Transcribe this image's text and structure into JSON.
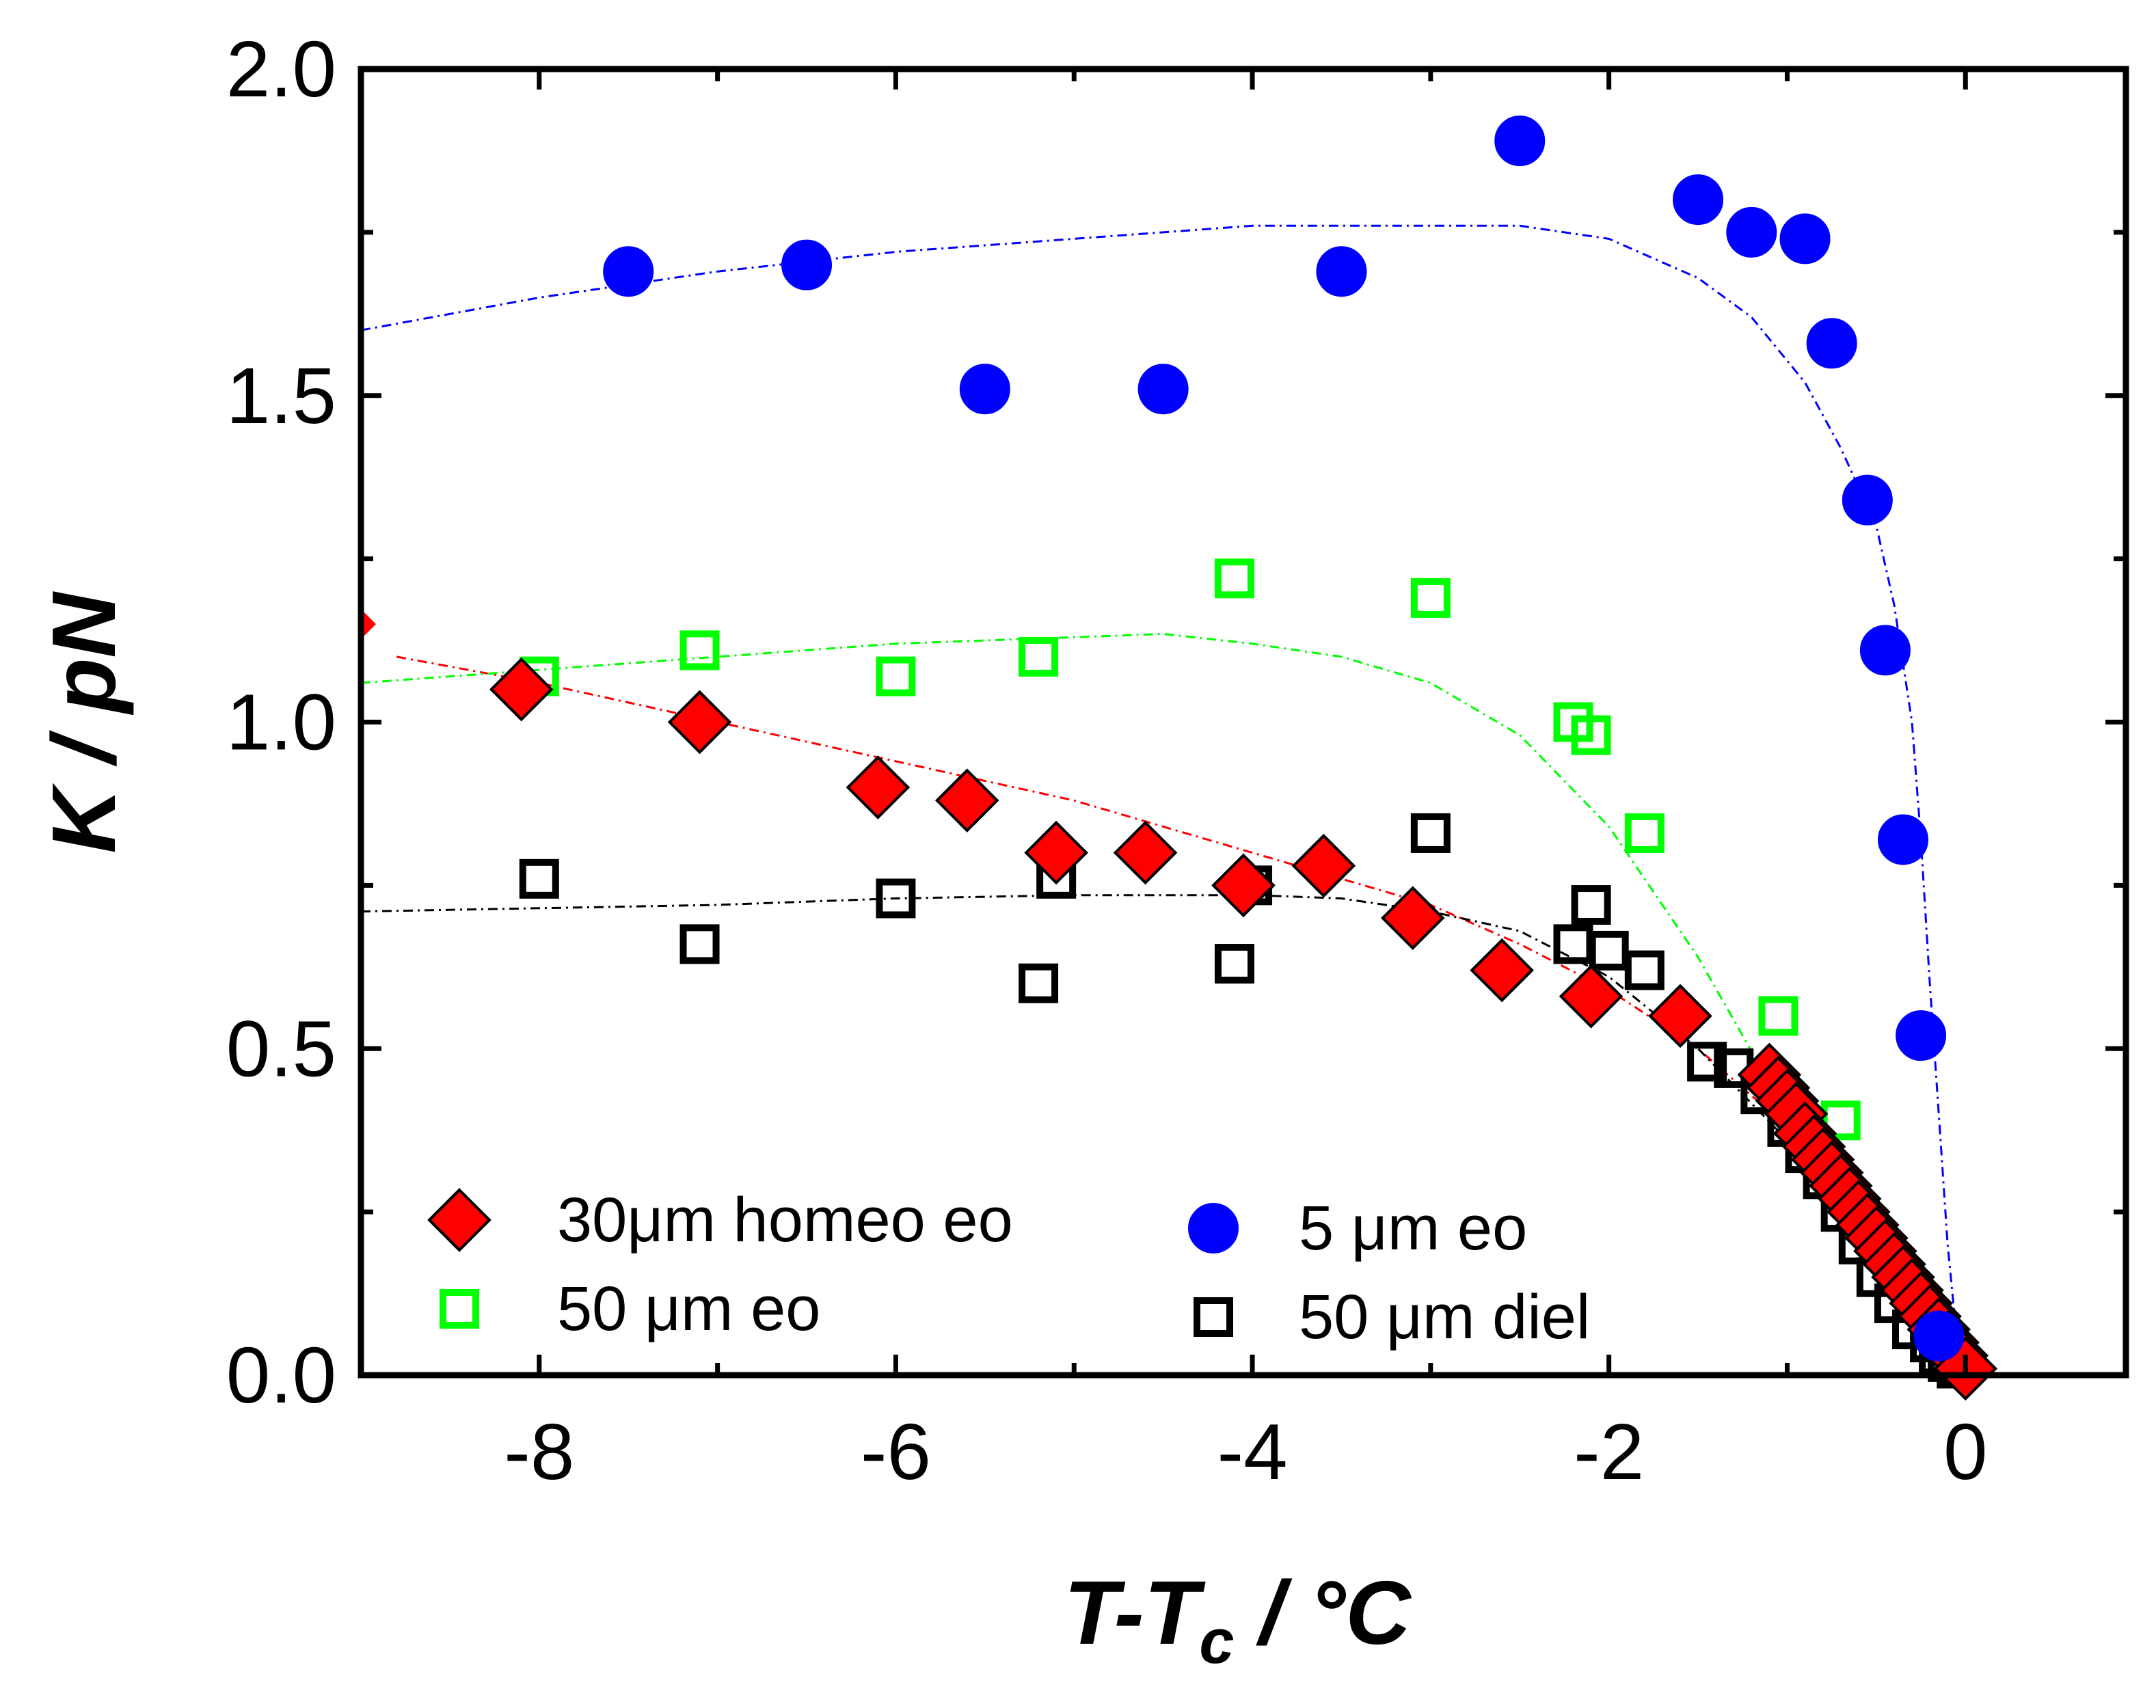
{
  "chart_data": {
    "type": "scatter",
    "title": "",
    "xlabel": {
      "main": "T-T",
      "sub": "c",
      "unit": " / °C"
    },
    "ylabel": {
      "main": "K",
      "unit": " / pN"
    },
    "xlim": [
      -9.0,
      0.9
    ],
    "ylim": [
      0.0,
      2.0
    ],
    "xticks": [
      -8,
      -6,
      -4,
      -2,
      0
    ],
    "xtick_labels": [
      "-8",
      "-6",
      "-4",
      "-2",
      "0"
    ],
    "yticks": [
      0.0,
      0.5,
      1.0,
      1.5,
      2.0
    ],
    "ytick_labels": [
      "0.0",
      "0.5",
      "1.0",
      "1.5",
      "2.0"
    ],
    "minor_xticks": [
      -9,
      -7,
      -5,
      -3,
      -1
    ],
    "minor_yticks": [
      0.25,
      0.75,
      1.25,
      1.75
    ],
    "grid": false,
    "legend_position": "bottom-left",
    "series": [
      {
        "name": "30μm homeo eo",
        "marker": "diamond",
        "color": "#ff0000",
        "edge": "#000000",
        "x": [
          -8.1,
          -7.1,
          -6.1,
          -5.6,
          -5.1,
          -4.6,
          -4.05,
          -3.6,
          -3.1,
          -2.6,
          -2.1,
          -1.6,
          -1.1,
          -1.05,
          -1.0,
          -0.95,
          -0.9,
          -0.85,
          -0.8,
          -0.75,
          -0.7,
          -0.65,
          -0.6,
          -0.55,
          -0.5,
          -0.45,
          -0.4,
          -0.35,
          -0.3,
          -0.25,
          -0.2,
          -0.15,
          -0.1,
          -0.05,
          0.0
        ],
        "y": [
          1.05,
          1.0,
          0.9,
          0.88,
          0.8,
          0.8,
          0.75,
          0.78,
          0.7,
          0.62,
          0.58,
          0.55,
          0.46,
          0.44,
          0.42,
          0.4,
          0.37,
          0.35,
          0.33,
          0.31,
          0.29,
          0.27,
          0.25,
          0.23,
          0.21,
          0.19,
          0.17,
          0.15,
          0.13,
          0.11,
          0.09,
          0.07,
          0.05,
          0.03,
          0.01
        ]
      },
      {
        "name": "5 μm eo",
        "marker": "circle",
        "color": "#0000ff",
        "edge": "#0000ff",
        "x": [
          -7.5,
          -6.5,
          -5.5,
          -4.5,
          -3.5,
          -2.5,
          -1.5,
          -1.2,
          -0.9,
          -0.75,
          -0.55,
          -0.45,
          -0.35,
          -0.25,
          -0.15
        ],
        "y": [
          1.69,
          1.7,
          1.51,
          1.51,
          1.69,
          1.89,
          1.8,
          1.75,
          1.74,
          1.58,
          1.34,
          1.11,
          0.82,
          0.52,
          0.06
        ]
      },
      {
        "name": "50 μm eo",
        "marker": "square-open",
        "color": "#00ff00",
        "edge": "#00ff00",
        "x": [
          -8.0,
          -7.1,
          -6.0,
          -5.2,
          -4.1,
          -3.0,
          -2.2,
          -2.1,
          -1.8,
          -1.05,
          -0.7
        ],
        "y": [
          1.07,
          1.11,
          1.07,
          1.1,
          1.22,
          1.19,
          1.0,
          0.98,
          0.83,
          0.55,
          0.39
        ]
      },
      {
        "name": "50 μm diel",
        "marker": "square-open",
        "color": "#000000",
        "edge": "#000000",
        "x": [
          -8.0,
          -7.1,
          -6.0,
          -5.2,
          -5.1,
          -4.1,
          -4.0,
          -3.0,
          -2.2,
          -2.1,
          -2.0,
          -1.8,
          -1.45,
          -1.3,
          -1.15,
          -1.0,
          -0.9,
          -0.8,
          -0.7,
          -0.6,
          -0.5,
          -0.4,
          -0.3,
          -0.2,
          -0.15,
          -0.1,
          -0.05
        ],
        "y": [
          0.76,
          0.66,
          0.73,
          0.6,
          0.76,
          0.63,
          0.75,
          0.83,
          0.66,
          0.72,
          0.65,
          0.62,
          0.48,
          0.47,
          0.43,
          0.38,
          0.34,
          0.3,
          0.25,
          0.2,
          0.15,
          0.11,
          0.07,
          0.05,
          0.03,
          0.02,
          0.01
        ]
      }
    ],
    "fits": [
      {
        "series": "30μm homeo eo",
        "style": "dash-dot",
        "color": "#ff0000",
        "x": [
          -8.8,
          -8.0,
          -7.0,
          -6.0,
          -5.0,
          -4.0,
          -3.0,
          -2.5,
          -2.0,
          -1.5,
          -1.0,
          -0.6,
          -0.3,
          -0.1,
          0.0
        ],
        "y": [
          1.1,
          1.06,
          1.0,
          0.94,
          0.88,
          0.8,
          0.72,
          0.66,
          0.59,
          0.5,
          0.38,
          0.27,
          0.17,
          0.08,
          0.0
        ]
      },
      {
        "series": "5 μm eo",
        "style": "dash-dot",
        "color": "#0000ff",
        "x": [
          -9.0,
          -8.0,
          -7.0,
          -6.0,
          -5.0,
          -4.0,
          -3.0,
          -2.5,
          -2.0,
          -1.5,
          -1.2,
          -0.9,
          -0.7,
          -0.5,
          -0.4,
          -0.3,
          -0.25,
          -0.2,
          -0.15,
          -0.1,
          -0.05,
          0.0
        ],
        "y": [
          1.6,
          1.65,
          1.69,
          1.72,
          1.74,
          1.76,
          1.76,
          1.76,
          1.74,
          1.68,
          1.62,
          1.52,
          1.42,
          1.3,
          1.18,
          1.0,
          0.82,
          0.6,
          0.4,
          0.2,
          0.06,
          0.0
        ]
      },
      {
        "series": "50 μm eo",
        "style": "dash-dot",
        "color": "#00ff00",
        "x": [
          -9.0,
          -8.0,
          -7.0,
          -6.0,
          -5.0,
          -4.5,
          -4.0,
          -3.5,
          -3.0,
          -2.5,
          -2.0,
          -1.5,
          -1.0,
          -0.6,
          -0.3,
          -0.1,
          0.0
        ],
        "y": [
          1.06,
          1.08,
          1.1,
          1.12,
          1.13,
          1.135,
          1.12,
          1.1,
          1.06,
          0.98,
          0.84,
          0.64,
          0.4,
          0.22,
          0.1,
          0.03,
          0.0
        ]
      },
      {
        "series": "50 μm diel",
        "style": "dash-dot",
        "color": "#000000",
        "x": [
          -9.0,
          -8.0,
          -7.0,
          -6.0,
          -5.0,
          -4.0,
          -3.5,
          -3.0,
          -2.5,
          -2.0,
          -1.5,
          -1.0,
          -0.6,
          -0.3,
          -0.1,
          0.0
        ],
        "y": [
          0.71,
          0.715,
          0.72,
          0.73,
          0.735,
          0.735,
          0.73,
          0.71,
          0.68,
          0.61,
          0.5,
          0.36,
          0.22,
          0.11,
          0.03,
          0.0
        ]
      }
    ],
    "edge_marker": {
      "x": -9.0,
      "y": 1.15,
      "color": "#ff0000",
      "marker": "half-diamond"
    },
    "legend": [
      {
        "label": "30μm homeo eo",
        "marker": "diamond",
        "color": "#ff0000"
      },
      {
        "label": "5 μm eo",
        "marker": "circle",
        "color": "#0000ff"
      },
      {
        "label": "50 μm eo",
        "marker": "square-open",
        "color": "#00ff00"
      },
      {
        "label": "50 μm diel",
        "marker": "square-open",
        "color": "#000000"
      }
    ]
  }
}
